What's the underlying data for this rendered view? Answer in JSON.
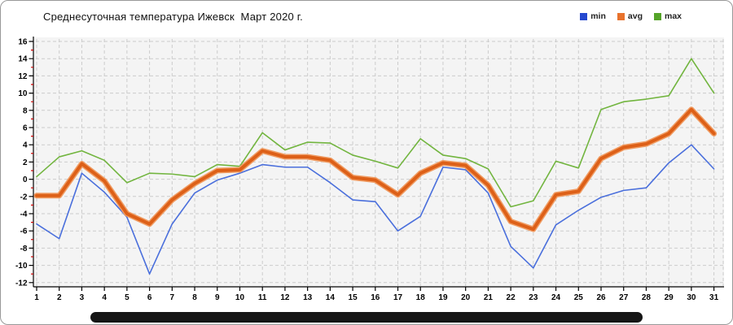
{
  "chart_data": {
    "type": "line",
    "title": "Среднесуточная температура Ижевск  Март 2020 г.",
    "x": [
      1,
      2,
      3,
      4,
      5,
      6,
      7,
      8,
      9,
      10,
      11,
      12,
      13,
      14,
      15,
      16,
      17,
      18,
      19,
      20,
      21,
      22,
      23,
      24,
      25,
      26,
      27,
      28,
      29,
      30,
      31
    ],
    "xlabel": "",
    "ylabel": "",
    "ylim": [
      -12,
      16
    ],
    "y_tick_labels": [
      16,
      14,
      12,
      10,
      8,
      6,
      4,
      2,
      0,
      -2,
      -4,
      -6,
      -8,
      -10,
      -12
    ],
    "y_minor_ticks": [
      15,
      13,
      11,
      9,
      7,
      5,
      3,
      1,
      -1,
      -3,
      -5,
      -7,
      -9,
      -11
    ],
    "grid": true,
    "legend_position": "top-right",
    "series": [
      {
        "name": "min",
        "swatch_color": "#2548cf",
        "line_color": "#4a6fdc",
        "values": [
          -5.2,
          -6.9,
          0.7,
          -1.5,
          -4.4,
          -11.0,
          -5.2,
          -1.6,
          -0.1,
          0.7,
          1.7,
          1.4,
          1.4,
          -0.4,
          -2.4,
          -2.6,
          -6.0,
          -4.3,
          1.4,
          1.1,
          -1.6,
          -7.8,
          -10.3,
          -5.3,
          -3.6,
          -2.1,
          -1.3,
          -1.0,
          1.9,
          4.0,
          1.2
        ]
      },
      {
        "name": "avg",
        "swatch_color": "#e8722c",
        "line_color": "#dd6018",
        "halo_color": "#f09c63",
        "values": [
          -1.9,
          -1.9,
          1.8,
          -0.2,
          -4.0,
          -5.2,
          -2.4,
          -0.5,
          1.0,
          1.1,
          3.3,
          2.6,
          2.6,
          2.2,
          0.2,
          -0.1,
          -1.8,
          0.7,
          1.9,
          1.6,
          -0.7,
          -4.9,
          -5.8,
          -1.8,
          -1.4,
          2.4,
          3.7,
          4.1,
          5.3,
          8.1,
          5.3
        ]
      },
      {
        "name": "max",
        "swatch_color": "#55a428",
        "line_color": "#72b53f",
        "values": [
          0.3,
          2.6,
          3.3,
          2.2,
          -0.4,
          0.7,
          0.6,
          0.3,
          1.7,
          1.5,
          5.4,
          3.4,
          4.3,
          4.2,
          2.8,
          2.1,
          1.3,
          4.7,
          2.8,
          2.4,
          1.2,
          -3.2,
          -2.5,
          2.1,
          1.3,
          8.1,
          9.0,
          9.3,
          9.7,
          14.0,
          10.0
        ]
      }
    ],
    "colors": {
      "plot_background": "#f4f4f4",
      "gridline": "#cccccc",
      "axis": "#000000",
      "minor_tick": "#cc0000"
    }
  }
}
